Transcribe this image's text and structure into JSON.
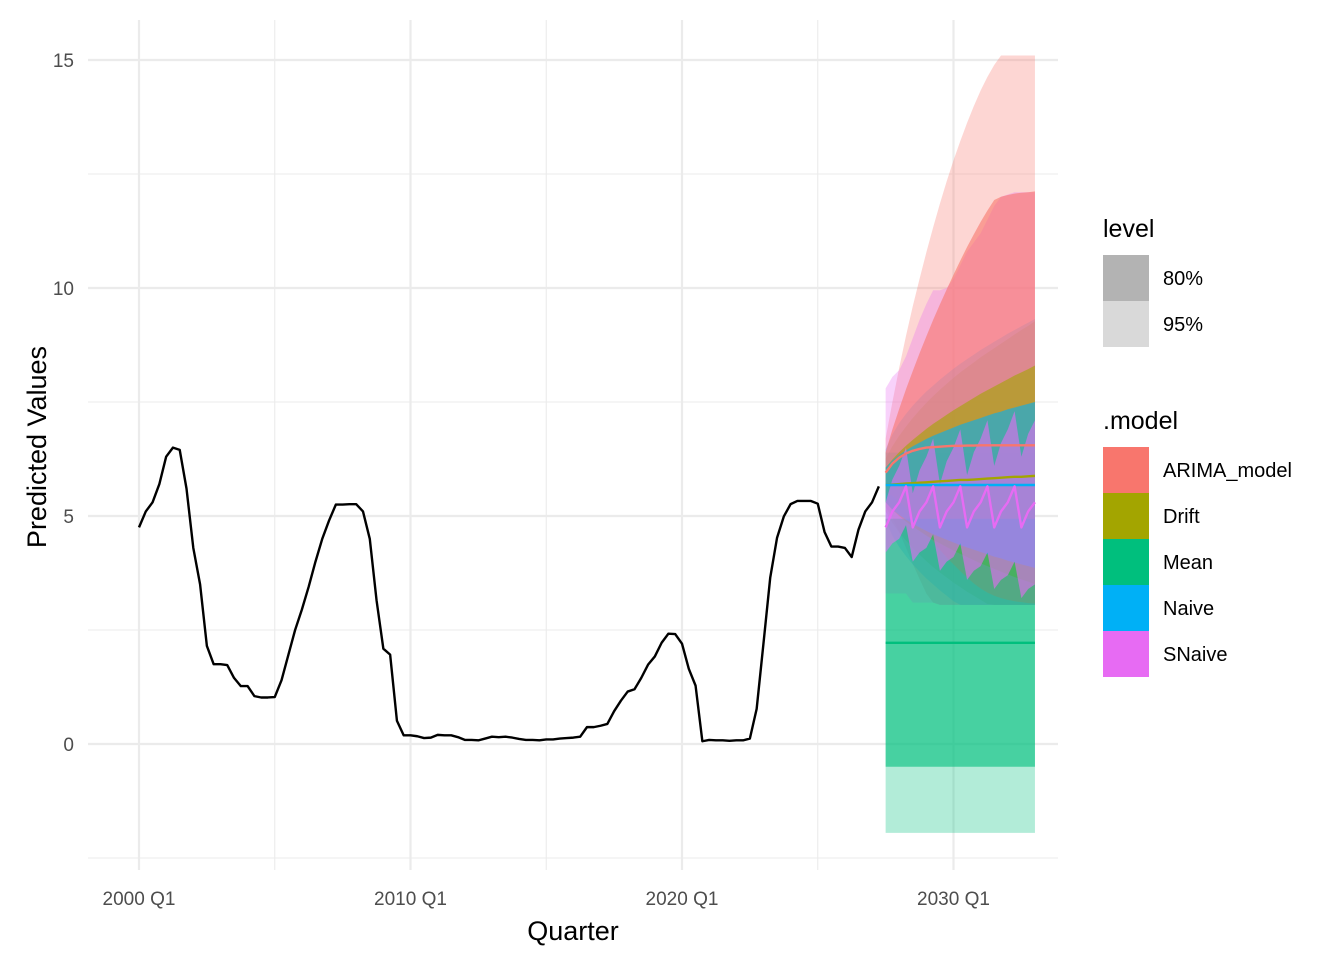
{
  "chart_data": {
    "type": "line",
    "xlabel": "Quarter",
    "ylabel": "Predicted Values",
    "x_ticks": [
      "2000 Q1",
      "2010 Q1",
      "2020 Q1",
      "2030 Q1"
    ],
    "x_tick_values": [
      2000,
      2010,
      2020,
      2030
    ],
    "y_ticks": [
      "0",
      "5",
      "10",
      "15"
    ],
    "y_tick_values": [
      0,
      5,
      10,
      15
    ],
    "xlim": [
      1998,
      2034
    ],
    "ylim": [
      -2.5,
      15.5
    ],
    "grid": true,
    "legend_placement": "right",
    "history": {
      "name": "",
      "color": "#000000",
      "x": [
        2000.0,
        2000.25,
        2000.5,
        2000.75,
        2001.0,
        2001.25,
        2001.5,
        2001.75,
        2002.0,
        2002.25,
        2002.5,
        2002.75,
        2003.0,
        2003.25,
        2003.5,
        2003.75,
        2004.0,
        2004.25,
        2004.5,
        2004.75,
        2005.0,
        2005.25,
        2005.5,
        2005.75,
        2006.0,
        2006.25,
        2006.5,
        2006.75,
        2007.0,
        2007.25,
        2007.5,
        2007.75,
        2008.0,
        2008.25,
        2008.5,
        2008.75,
        2009.0,
        2009.25,
        2009.5,
        2009.75,
        2010.0,
        2010.25,
        2010.5,
        2010.75,
        2011.0,
        2011.25,
        2011.5,
        2011.75,
        2012.0,
        2012.25,
        2012.5,
        2012.75,
        2013.0,
        2013.25,
        2013.5,
        2013.75,
        2014.0,
        2014.25,
        2014.5,
        2014.75,
        2015.0,
        2015.25,
        2015.5,
        2015.75,
        2016.0,
        2016.25,
        2016.5,
        2016.75,
        2017.0,
        2017.25,
        2017.5,
        2017.75,
        2018.0,
        2018.25,
        2018.5,
        2018.75,
        2019.0,
        2019.25,
        2019.5,
        2019.75,
        2020.0,
        2020.25,
        2020.5,
        2020.75,
        2021.0,
        2021.25,
        2021.5,
        2021.75,
        2022.0,
        2022.25,
        2022.5,
        2022.75,
        2023.0,
        2023.25,
        2023.5,
        2023.75,
        2024.0,
        2024.25,
        2024.5,
        2024.75,
        2025.0,
        2025.25,
        2025.5,
        2025.75,
        2026.0,
        2026.25,
        2026.5,
        2026.75,
        2027.0,
        2027.25
      ],
      "y": [
        4.75,
        5.1,
        5.3,
        5.7,
        6.3,
        6.5,
        6.45,
        5.6,
        4.3,
        3.5,
        2.15,
        1.75,
        1.75,
        1.73,
        1.45,
        1.27,
        1.27,
        1.05,
        1.02,
        1.02,
        1.03,
        1.4,
        1.95,
        2.5,
        2.95,
        3.45,
        4.0,
        4.5,
        4.9,
        5.25,
        5.25,
        5.26,
        5.26,
        5.1,
        4.5,
        3.15,
        2.09,
        1.96,
        0.51,
        0.19,
        0.19,
        0.17,
        0.13,
        0.14,
        0.2,
        0.19,
        0.19,
        0.15,
        0.09,
        0.09,
        0.08,
        0.12,
        0.16,
        0.15,
        0.16,
        0.14,
        0.11,
        0.09,
        0.09,
        0.08,
        0.1,
        0.1,
        0.12,
        0.13,
        0.14,
        0.16,
        0.37,
        0.37,
        0.4,
        0.44,
        0.72,
        0.95,
        1.15,
        1.2,
        1.45,
        1.74,
        1.92,
        2.22,
        2.42,
        2.41,
        2.2,
        1.65,
        1.28,
        0.06,
        0.09,
        0.08,
        0.08,
        0.07,
        0.08,
        0.08,
        0.12,
        0.77,
        2.2,
        3.65,
        4.52,
        4.99,
        5.26,
        5.33,
        5.33,
        5.33,
        5.27,
        4.65,
        4.33,
        4.33,
        4.3,
        4.1,
        4.7,
        5.1,
        5.3,
        5.65
      ]
    },
    "forecast_x": [
      2027.5,
      2027.75,
      2028.0,
      2028.25,
      2028.5,
      2028.75,
      2029.0,
      2029.25,
      2029.5,
      2029.75,
      2030.0,
      2030.25,
      2030.5,
      2030.75,
      2031.0,
      2031.25,
      2031.5,
      2031.75,
      2032.0,
      2032.25,
      2032.5,
      2032.75,
      2033.0
    ],
    "series": [
      {
        "name": "ARIMA_model",
        "color": "#F8766D",
        "mean": [
          5.95,
          6.15,
          6.28,
          6.37,
          6.43,
          6.47,
          6.5,
          6.51,
          6.52,
          6.53,
          6.54,
          6.54,
          6.545,
          6.545,
          6.55,
          6.55,
          6.55,
          6.55,
          6.55,
          6.55,
          6.55,
          6.55,
          6.55
        ],
        "lo80": [
          5.5,
          5.45,
          5.33,
          5.18,
          5.0,
          4.81,
          4.62,
          4.44,
          4.26,
          4.09,
          3.94,
          3.79,
          3.65,
          3.52,
          3.41,
          3.32,
          3.25,
          3.2,
          3.16,
          3.13,
          3.11,
          3.09,
          3.08
        ],
        "hi80": [
          6.4,
          6.9,
          7.35,
          7.78,
          8.18,
          8.57,
          8.94,
          9.3,
          9.64,
          9.97,
          10.29,
          10.6,
          10.9,
          11.18,
          11.45,
          11.7,
          11.93,
          12.0,
          12.04,
          12.07,
          12.09,
          12.1,
          12.12
        ],
        "lo95": [
          5.2,
          4.95,
          4.65,
          4.3,
          3.95,
          3.62,
          3.3,
          3.1,
          3.05,
          3.05,
          3.05,
          3.05,
          3.05,
          3.05,
          3.05,
          3.05,
          3.05,
          3.05,
          3.05,
          3.05,
          3.05,
          3.05,
          3.05
        ],
        "hi95": [
          6.7,
          7.5,
          8.25,
          8.95,
          9.6,
          10.2,
          10.78,
          11.33,
          11.85,
          12.34,
          12.8,
          13.22,
          13.62,
          13.99,
          14.33,
          14.63,
          14.89,
          15.1,
          15.1,
          15.1,
          15.1,
          15.1,
          15.1
        ]
      },
      {
        "name": "Drift",
        "color": "#A3A500",
        "mean": [
          5.68,
          5.69,
          5.7,
          5.71,
          5.72,
          5.73,
          5.74,
          5.75,
          5.76,
          5.77,
          5.78,
          5.79,
          5.79,
          5.8,
          5.81,
          5.82,
          5.83,
          5.84,
          5.85,
          5.86,
          5.86,
          5.87,
          5.88
        ],
        "lo80": [
          5.3,
          5.14,
          5.0,
          4.88,
          4.77,
          4.67,
          4.57,
          4.48,
          4.4,
          4.32,
          4.24,
          4.17,
          4.1,
          4.03,
          3.96,
          3.9,
          3.84,
          3.78,
          3.72,
          3.66,
          3.61,
          3.56,
          3.5
        ],
        "hi80": [
          6.06,
          6.24,
          6.4,
          6.54,
          6.67,
          6.79,
          6.91,
          7.02,
          7.12,
          7.22,
          7.32,
          7.41,
          7.5,
          7.59,
          7.68,
          7.76,
          7.84,
          7.92,
          8.0,
          8.08,
          8.15,
          8.22,
          8.3
        ],
        "lo95": [
          5.1,
          4.85,
          4.64,
          4.46,
          4.3,
          4.15,
          4.01,
          3.88,
          3.76,
          3.65,
          3.54,
          3.44,
          3.34,
          3.25,
          3.16,
          3.07,
          3.05,
          3.05,
          3.05,
          3.05,
          3.05,
          3.05,
          3.05
        ],
        "hi95": [
          6.26,
          6.53,
          6.76,
          6.96,
          7.15,
          7.32,
          7.48,
          7.63,
          7.77,
          7.9,
          8.03,
          8.15,
          8.26,
          8.37,
          8.48,
          8.58,
          8.68,
          8.78,
          8.88,
          8.98,
          9.08,
          9.17,
          9.27
        ]
      },
      {
        "name": "Mean",
        "color": "#00BF7D",
        "mean": [
          2.22,
          2.22,
          2.22,
          2.22,
          2.22,
          2.22,
          2.22,
          2.22,
          2.22,
          2.22,
          2.22,
          2.22,
          2.22,
          2.22,
          2.22,
          2.22,
          2.22,
          2.22,
          2.22,
          2.22,
          2.22,
          2.22,
          2.22
        ],
        "lo80": [
          -0.5,
          -0.5,
          -0.5,
          -0.5,
          -0.5,
          -0.5,
          -0.5,
          -0.5,
          -0.5,
          -0.5,
          -0.5,
          -0.5,
          -0.5,
          -0.5,
          -0.5,
          -0.5,
          -0.5,
          -0.5,
          -0.5,
          -0.5,
          -0.5,
          -0.5,
          -0.5
        ],
        "hi80": [
          4.94,
          4.94,
          4.94,
          4.94,
          4.94,
          4.94,
          4.94,
          4.94,
          4.94,
          4.94,
          4.94,
          4.94,
          4.94,
          4.94,
          4.94,
          4.94,
          4.94,
          4.94,
          4.94,
          4.94,
          4.94,
          4.94,
          4.94
        ],
        "lo95": [
          -1.95,
          -1.95,
          -1.95,
          -1.95,
          -1.95,
          -1.95,
          -1.95,
          -1.95,
          -1.95,
          -1.95,
          -1.95,
          -1.95,
          -1.95,
          -1.95,
          -1.95,
          -1.95,
          -1.95,
          -1.95,
          -1.95,
          -1.95,
          -1.95,
          -1.95,
          -1.95
        ],
        "hi95": [
          6.39,
          6.39,
          6.39,
          6.39,
          6.39,
          6.39,
          6.39,
          6.39,
          6.39,
          6.39,
          6.39,
          6.39,
          6.39,
          6.39,
          6.39,
          6.39,
          6.39,
          6.39,
          6.39,
          6.39,
          6.39,
          6.39,
          6.39
        ]
      },
      {
        "name": "Naive",
        "color": "#00B0F6",
        "mean": [
          5.68,
          5.68,
          5.68,
          5.68,
          5.68,
          5.68,
          5.68,
          5.68,
          5.68,
          5.68,
          5.68,
          5.68,
          5.68,
          5.68,
          5.68,
          5.68,
          5.68,
          5.68,
          5.68,
          5.68,
          5.68,
          5.68,
          5.68
        ],
        "lo80": [
          5.3,
          5.14,
          5.02,
          4.92,
          4.83,
          4.75,
          4.67,
          4.6,
          4.54,
          4.48,
          4.42,
          4.36,
          4.31,
          4.26,
          4.21,
          4.16,
          4.11,
          4.07,
          4.02,
          3.98,
          3.94,
          3.9,
          3.86
        ],
        "hi80": [
          6.06,
          6.22,
          6.34,
          6.44,
          6.53,
          6.61,
          6.69,
          6.76,
          6.82,
          6.88,
          6.94,
          7.0,
          7.05,
          7.1,
          7.15,
          7.2,
          7.25,
          7.29,
          7.34,
          7.38,
          7.42,
          7.46,
          7.5
        ],
        "lo95": [
          4.9,
          4.57,
          4.32,
          4.12,
          3.94,
          3.78,
          3.63,
          3.5,
          3.37,
          3.25,
          3.13,
          3.05,
          3.05,
          3.05,
          3.05,
          3.05,
          3.05,
          3.05,
          3.05,
          3.05,
          3.05,
          3.05,
          3.05
        ],
        "hi95": [
          6.46,
          6.79,
          7.04,
          7.24,
          7.42,
          7.58,
          7.73,
          7.86,
          7.99,
          8.11,
          8.23,
          8.34,
          8.44,
          8.54,
          8.64,
          8.73,
          8.82,
          8.91,
          9.0,
          9.08,
          9.16,
          9.24,
          9.32
        ]
      },
      {
        "name": "SNaive",
        "color": "#E76BF3",
        "mean": [
          4.75,
          5.1,
          5.3,
          5.65,
          4.75,
          5.1,
          5.3,
          5.65,
          4.75,
          5.1,
          5.3,
          5.65,
          4.75,
          5.1,
          5.3,
          5.65,
          4.75,
          5.1,
          5.3,
          5.65,
          4.75,
          5.1,
          5.3
        ],
        "lo80": [
          4.2,
          4.4,
          4.5,
          4.8,
          4.0,
          4.2,
          4.3,
          4.6,
          3.8,
          4.0,
          4.1,
          4.4,
          3.6,
          3.8,
          3.9,
          4.2,
          3.4,
          3.6,
          3.7,
          4.0,
          3.2,
          3.4,
          3.5
        ],
        "hi80": [
          5.3,
          5.8,
          6.1,
          6.5,
          5.5,
          6.0,
          6.3,
          6.7,
          5.7,
          6.2,
          6.5,
          6.9,
          5.9,
          6.4,
          6.7,
          7.1,
          6.1,
          6.6,
          6.9,
          7.3,
          6.3,
          6.8,
          7.1
        ],
        "lo95": [
          3.3,
          3.3,
          3.3,
          3.3,
          3.1,
          3.1,
          3.1,
          3.1,
          3.05,
          3.05,
          3.05,
          3.05,
          3.05,
          3.05,
          3.05,
          3.05,
          3.05,
          3.05,
          3.05,
          3.05,
          3.05,
          3.05,
          3.05
        ],
        "hi95": [
          7.8,
          8.05,
          8.2,
          8.5,
          8.9,
          9.3,
          9.65,
          9.95,
          9.95,
          10.0,
          10.2,
          10.5,
          10.8,
          11.0,
          11.2,
          11.5,
          11.8,
          12.0,
          12.05,
          12.1,
          12.1,
          12.1,
          12.1
        ]
      }
    ],
    "legend_level": {
      "title": "level",
      "items": [
        {
          "label": "80%",
          "color": "#B3B3B3"
        },
        {
          "label": "95%",
          "color": "#D9D9D9"
        }
      ]
    },
    "legend_model": {
      "title": ".model",
      "items": [
        {
          "label": "ARIMA_model",
          "color": "#F8766D"
        },
        {
          "label": "Drift",
          "color": "#A3A500"
        },
        {
          "label": "Mean",
          "color": "#00BF7D"
        },
        {
          "label": "Naive",
          "color": "#00B0F6"
        },
        {
          "label": "SNaive",
          "color": "#E76BF3"
        }
      ]
    }
  }
}
